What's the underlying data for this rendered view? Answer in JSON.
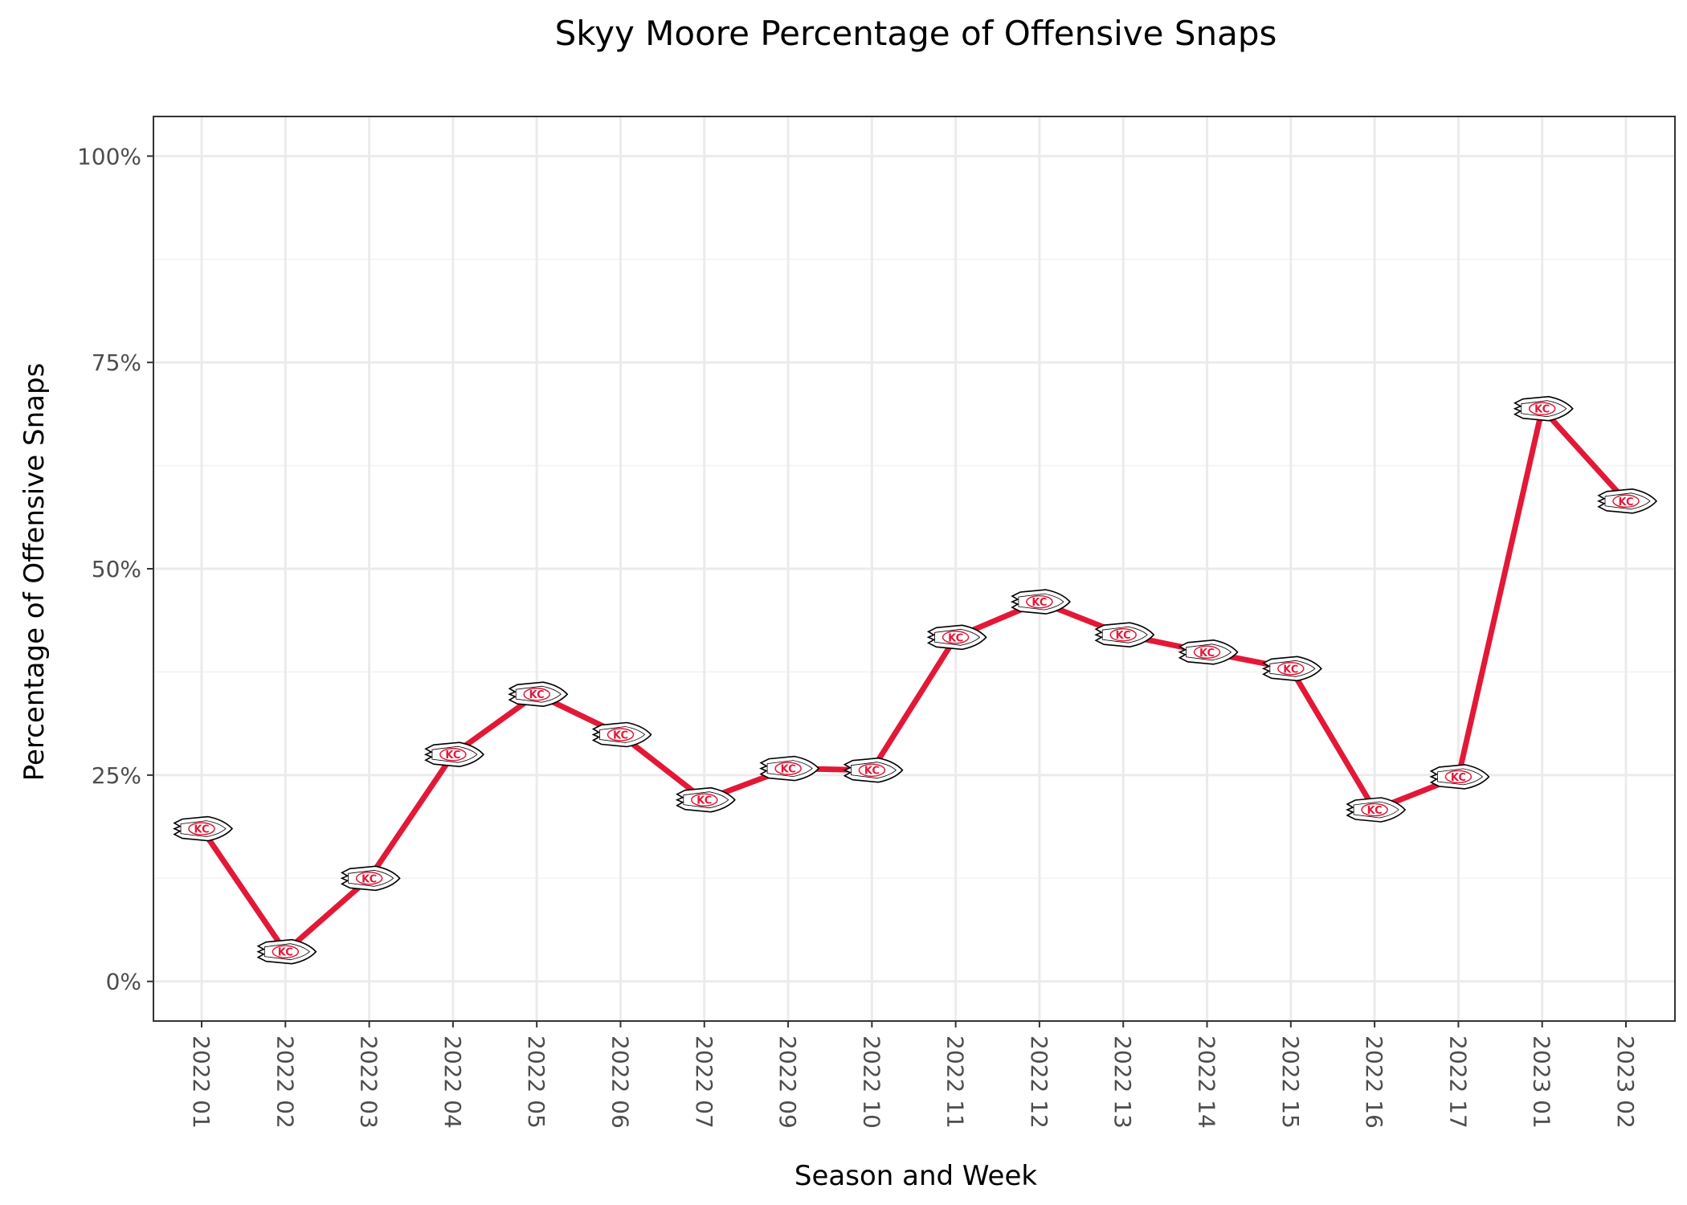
{
  "chart_data": {
    "type": "line",
    "title": "Skyy Moore Percentage of Offensive Snaps",
    "xlabel": "Season and Week",
    "ylabel": "Percentage of Offensive Snaps",
    "categories": [
      "2022 01",
      "2022 02",
      "2022 03",
      "2022 04",
      "2022 05",
      "2022 06",
      "2022 07",
      "2022 09",
      "2022 10",
      "2022 11",
      "2022 12",
      "2022 13",
      "2022 14",
      "2022 15",
      "2022 16",
      "2022 17",
      "2023 01",
      "2023 02"
    ],
    "series": [
      {
        "values": [
          18.5,
          3.6,
          12.5,
          27.5,
          34.8,
          29.9,
          22.0,
          25.8,
          25.6,
          41.7,
          46.0,
          42.0,
          39.9,
          37.9,
          20.8,
          24.8,
          69.4,
          58.2
        ]
      }
    ],
    "ylim": [
      -4.8,
      104.8
    ],
    "y_ticks": [
      0,
      25,
      50,
      75,
      100
    ],
    "y_tick_labels": [
      "0%",
      "25%",
      "50%",
      "75%",
      "100%"
    ],
    "grid": true,
    "line_color": "#E31837",
    "marker": "chiefs-arrowhead-logo",
    "marker_text": "KC"
  }
}
